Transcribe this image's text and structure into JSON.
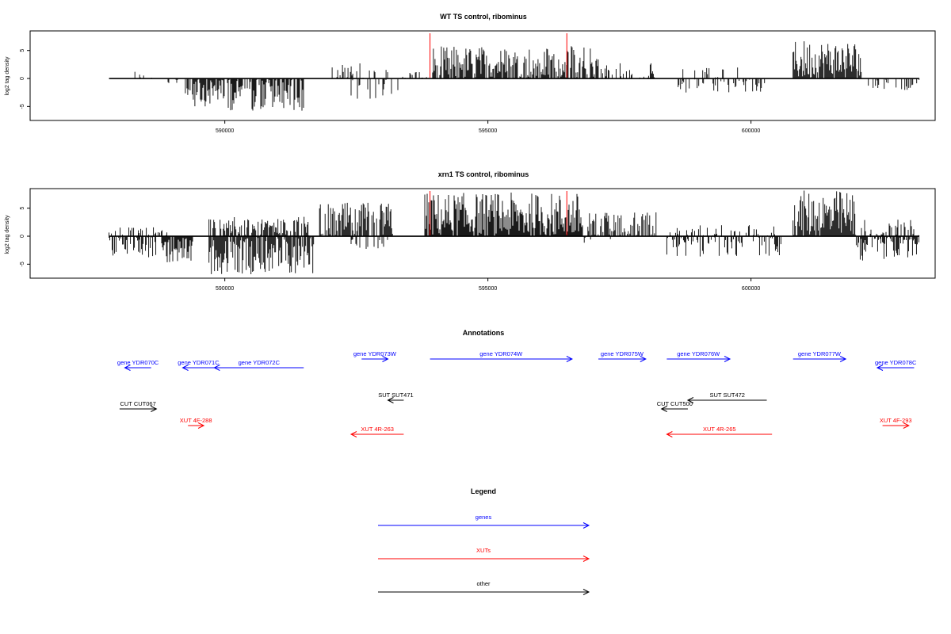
{
  "colors": {
    "gene": "#0000ff",
    "xut": "#ff0000",
    "other": "#000000",
    "marker": "#ff0000",
    "bar": "#000000"
  },
  "chart_data": [
    {
      "type": "bar",
      "title": "WT TS control, ribominus",
      "ylabel": "log2 tag density",
      "xlim": [
        586300,
        603500
      ],
      "ylim": [
        -7.5,
        8.5
      ],
      "x_ticks": [
        590000,
        595000,
        600000
      ],
      "x_tick_labels": [
        "590000",
        "595000",
        "600000"
      ],
      "y_ticks": [
        -5,
        0,
        5
      ],
      "y_tick_labels": [
        "-5",
        "0",
        "5"
      ],
      "marker_lines": [
        593900,
        596500
      ],
      "regions": [
        {
          "start": 588200,
          "end": 588700,
          "sign": 1,
          "max": 1.4,
          "density": 0.25
        },
        {
          "start": 588800,
          "end": 589200,
          "sign": -1,
          "max": 1.3,
          "density": 0.2
        },
        {
          "start": 589250,
          "end": 590000,
          "sign": -1,
          "max": 5.0,
          "density": 0.9
        },
        {
          "start": 590050,
          "end": 591500,
          "sign": -1,
          "max": 5.8,
          "density": 0.8
        },
        {
          "start": 591950,
          "end": 593100,
          "sign": 1,
          "max": 3.0,
          "density": 0.35
        },
        {
          "start": 592400,
          "end": 593300,
          "sign": -1,
          "max": 3.8,
          "density": 0.25
        },
        {
          "start": 593350,
          "end": 593900,
          "sign": 1,
          "max": 1.3,
          "density": 0.3
        },
        {
          "start": 593950,
          "end": 597100,
          "sign": 1,
          "max": 5.8,
          "density": 0.85
        },
        {
          "start": 597150,
          "end": 598200,
          "sign": 1,
          "max": 3.0,
          "density": 0.45
        },
        {
          "start": 598600,
          "end": 600300,
          "sign": -1,
          "max": 2.6,
          "density": 0.3
        },
        {
          "start": 598600,
          "end": 599800,
          "sign": 1,
          "max": 2.0,
          "density": 0.15
        },
        {
          "start": 600800,
          "end": 602100,
          "sign": 1,
          "max": 7.0,
          "density": 1.0
        },
        {
          "start": 602200,
          "end": 603200,
          "sign": -1,
          "max": 2.4,
          "density": 0.3
        }
      ]
    },
    {
      "type": "bar",
      "title": "xrn1 TS control, ribominus",
      "ylabel": "log2 tag density",
      "xlim": [
        586300,
        603500
      ],
      "ylim": [
        -7.5,
        8.5
      ],
      "x_ticks": [
        590000,
        595000,
        600000
      ],
      "x_tick_labels": [
        "590000",
        "595000",
        "600000"
      ],
      "y_ticks": [
        -5,
        0,
        5
      ],
      "y_tick_labels": [
        "-5",
        "0",
        "5"
      ],
      "marker_lines": [
        593900,
        596500
      ],
      "regions": [
        {
          "start": 587800,
          "end": 588700,
          "sign": -1,
          "max": 4.0,
          "density": 0.7
        },
        {
          "start": 587800,
          "end": 588900,
          "sign": 1,
          "max": 1.6,
          "density": 0.35
        },
        {
          "start": 588800,
          "end": 589400,
          "sign": -1,
          "max": 5.0,
          "density": 0.95
        },
        {
          "start": 589700,
          "end": 591600,
          "sign": 1,
          "max": 3.5,
          "density": 0.7
        },
        {
          "start": 589700,
          "end": 591700,
          "sign": -1,
          "max": 6.8,
          "density": 0.95
        },
        {
          "start": 591800,
          "end": 593200,
          "sign": 1,
          "max": 6.0,
          "density": 0.8
        },
        {
          "start": 592400,
          "end": 593100,
          "sign": -1,
          "max": 2.5,
          "density": 0.3
        },
        {
          "start": 593800,
          "end": 596800,
          "sign": 1,
          "max": 7.8,
          "density": 1.0
        },
        {
          "start": 596800,
          "end": 597400,
          "sign": -1,
          "max": 1.5,
          "density": 0.2
        },
        {
          "start": 596900,
          "end": 598200,
          "sign": 1,
          "max": 4.5,
          "density": 0.7
        },
        {
          "start": 598400,
          "end": 600600,
          "sign": -1,
          "max": 3.8,
          "density": 0.45
        },
        {
          "start": 598400,
          "end": 600500,
          "sign": 1,
          "max": 2.0,
          "density": 0.25
        },
        {
          "start": 600800,
          "end": 602000,
          "sign": 1,
          "max": 8.2,
          "density": 1.0
        },
        {
          "start": 602000,
          "end": 603200,
          "sign": -1,
          "max": 4.5,
          "density": 0.7
        },
        {
          "start": 602100,
          "end": 603200,
          "sign": 1,
          "max": 3.0,
          "density": 0.5
        }
      ]
    }
  ],
  "annotations": {
    "title": "Annotations",
    "features": [
      {
        "label": "gene YDR070C",
        "category": "gene",
        "start": 588100,
        "end": 588600,
        "dir": "left",
        "row": 1
      },
      {
        "label": "gene YDR071C",
        "category": "gene",
        "start": 589200,
        "end": 589800,
        "dir": "left",
        "row": 1
      },
      {
        "label": "gene YDR072C",
        "category": "gene",
        "start": 589800,
        "end": 591500,
        "dir": "left",
        "row": 1
      },
      {
        "label": "gene YDR073W",
        "category": "gene",
        "start": 592600,
        "end": 593100,
        "dir": "right",
        "row": 0
      },
      {
        "label": "gene YDR074W",
        "category": "gene",
        "start": 593900,
        "end": 596600,
        "dir": "right",
        "row": 0
      },
      {
        "label": "gene YDR075W",
        "category": "gene",
        "start": 597100,
        "end": 598000,
        "dir": "right",
        "row": 0
      },
      {
        "label": "gene YDR076W",
        "category": "gene",
        "start": 598400,
        "end": 599600,
        "dir": "right",
        "row": 0
      },
      {
        "label": "gene YDR077W",
        "category": "gene",
        "start": 600800,
        "end": 601800,
        "dir": "right",
        "row": 0
      },
      {
        "label": "gene YDR078C",
        "category": "gene",
        "start": 602400,
        "end": 603100,
        "dir": "left",
        "row": 1
      },
      {
        "label": "SUT SUT471",
        "category": "other",
        "start": 593100,
        "end": 593400,
        "dir": "left",
        "row": 2
      },
      {
        "label": "SUT SUT472",
        "category": "other",
        "start": 598800,
        "end": 600300,
        "dir": "left",
        "row": 2
      },
      {
        "label": "CUT CUT067",
        "category": "other",
        "start": 588000,
        "end": 588700,
        "dir": "right",
        "row": 3
      },
      {
        "label": "CUT CUT500",
        "category": "other",
        "start": 598300,
        "end": 598800,
        "dir": "left",
        "row": 3
      },
      {
        "label": "XUT 4F-288",
        "category": "xut",
        "start": 589300,
        "end": 589600,
        "dir": "right",
        "row": 4
      },
      {
        "label": "XUT 4R-263",
        "category": "xut",
        "start": 592400,
        "end": 593400,
        "dir": "left",
        "row": 5
      },
      {
        "label": "XUT 4R-265",
        "category": "xut",
        "start": 598400,
        "end": 600400,
        "dir": "left",
        "row": 5
      },
      {
        "label": "XUT 4F-293",
        "category": "xut",
        "start": 602500,
        "end": 603000,
        "dir": "right",
        "row": 4
      }
    ]
  },
  "legend": {
    "title": "Legend",
    "entries": [
      {
        "label": "genes",
        "category": "gene"
      },
      {
        "label": "XUTs",
        "category": "xut"
      },
      {
        "label": "other",
        "category": "other"
      }
    ]
  }
}
